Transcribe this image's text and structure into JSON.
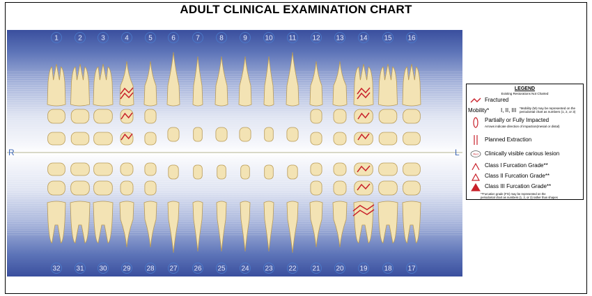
{
  "title": "ADULT CLINICAL EXAMINATION CHART",
  "upper_numbers": [
    "1",
    "2",
    "3",
    "4",
    "5",
    "6",
    "7",
    "8",
    "9",
    "10",
    "11",
    "12",
    "13",
    "14",
    "15",
    "16"
  ],
  "lower_numbers": [
    "32",
    "31",
    "30",
    "29",
    "28",
    "27",
    "26",
    "25",
    "24",
    "23",
    "22",
    "21",
    "20",
    "19",
    "18",
    "17"
  ],
  "side_left": "R",
  "side_right": "L",
  "markings": {
    "fractured_upper": [
      "4",
      "14"
    ],
    "fractured_lower": [
      "19"
    ]
  },
  "colors": {
    "tooth_fill": "#f3e3b4",
    "tooth_stroke": "#b89a55",
    "mark_red": "#c8202a",
    "number_circle": "#4a78c8"
  },
  "legend": {
    "title": "LEGEND",
    "subtitle": "Existing Restorations Not Charted",
    "fractured": "Fractured",
    "mobility_label": "Mobility*",
    "mobility_values": "I, II, III",
    "mobility_note_1": "*Mobility (M) may be represented on the",
    "mobility_note_2": "periodontal chart as numbers (1, 2, or 3)",
    "impacted": "Partially or Fully Impacted",
    "impacted_note": "Arrows indicate direction of impaction(mesial or distal)",
    "extraction": "Planned Extraction",
    "carious": "Clinically visible carious lesion",
    "carious_symbol_text": "Red",
    "furcation_1": "Class I Furcation Grade**",
    "furcation_2": "Class II Furcation Grade**",
    "furcation_3": "Class III Furcation Grade**",
    "footnote_1": "**Furcation grade (FG) may be represented on the",
    "footnote_2": "periodontal chart as numbers (1, 2, or 3) rather than shapes"
  }
}
